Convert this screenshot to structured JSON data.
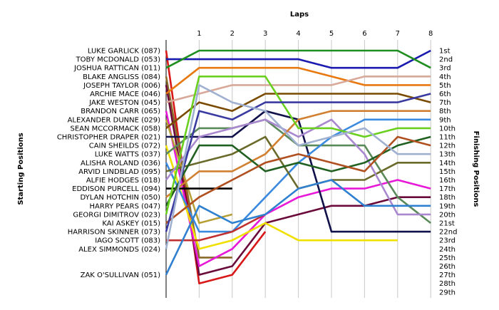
{
  "chart_data": {
    "type": "line",
    "title": "",
    "xlabel": "Laps",
    "ylabel_left": "Starting Positions",
    "ylabel_right": "Finishing Positions",
    "x_ticks": [
      1,
      2,
      3,
      4,
      5,
      6,
      7,
      8
    ],
    "grid": "vertical",
    "y_ticks_right": [
      "1st",
      "2nd",
      "3rd",
      "4th",
      "5th",
      "6th",
      "7th",
      "8th",
      "9th",
      "10th",
      "11th",
      "12th",
      "13th",
      "14th",
      "15th",
      "16th",
      "17th",
      "18th",
      "19th",
      "20th",
      "21st",
      "22nd",
      "23rd",
      "24th",
      "25th",
      "26th",
      "27th",
      "28th",
      "29th"
    ],
    "series": [
      {
        "name": "LUKE GARLICK (087)",
        "color": "#d81818",
        "positions": [
          1,
          28,
          27,
          22
        ]
      },
      {
        "name": "TOBY MCDONALD (053)",
        "color": "#1a1ab0",
        "positions": [
          2,
          2,
          2,
          2,
          2,
          3,
          3,
          3,
          1
        ]
      },
      {
        "name": "JOSHUA RATTICAN (011)",
        "color": "#1e8e1e",
        "positions": [
          3,
          1,
          1,
          1,
          1,
          1,
          1,
          1,
          3
        ]
      },
      {
        "name": "BLAKE ANGLISS (084)",
        "color": "#8a6a2a",
        "positions": [
          4,
          25,
          25
        ]
      },
      {
        "name": "JOSEPH TAYLOR (006)",
        "color": "#6a0a3a",
        "positions": [
          5,
          27,
          26,
          21,
          20,
          19,
          19,
          18,
          18
        ]
      },
      {
        "name": "ARCHIE MACE (046)",
        "color": "#e87810",
        "positions": [
          6,
          3,
          3,
          3,
          3,
          4,
          5,
          5,
          5
        ]
      },
      {
        "name": "JAKE WESTON (045)",
        "color": "#d8a898",
        "positions": [
          7,
          6,
          5,
          5,
          5,
          5,
          4,
          4,
          4
        ]
      },
      {
        "name": "BRANDON CARR (065)",
        "color": "#e818d8",
        "positions": [
          8,
          26,
          24,
          20,
          18,
          17,
          17,
          16,
          17
        ]
      },
      {
        "name": "ALEXANDER DUNNE (029)",
        "color": "#b8a038",
        "positions": [
          9,
          21,
          20
        ]
      },
      {
        "name": "SEAN MCCORMACK (058)",
        "color": "#7a4a00",
        "positions": [
          10,
          7,
          8,
          6,
          6,
          6,
          6,
          6,
          7
        ]
      },
      {
        "name": "CHRISTOPHER DRAPER (021)",
        "color": "#10104a",
        "positions": [
          11,
          11,
          11,
          8,
          9,
          22,
          22,
          22,
          22
        ]
      },
      {
        "name": "CAIN SHEILDS (072)",
        "color": "#f0e000",
        "positions": [
          12,
          24,
          23,
          21,
          23,
          23,
          23,
          23
        ]
      },
      {
        "name": "LUKE WATTS (037)",
        "color": "#5a8a5a",
        "positions": [
          13,
          10,
          10,
          9,
          12,
          12,
          12,
          18,
          21
        ]
      },
      {
        "name": "ALISHA ROLAND (036)",
        "color": "#3a8ae0",
        "positions": [
          14,
          22,
          22,
          18,
          14,
          11,
          9,
          9,
          9
        ]
      },
      {
        "name": "ARVID LINDBLAD (095)",
        "color": "#6a6a2a",
        "positions": [
          15,
          14,
          13,
          11,
          17,
          16,
          16,
          14,
          14
        ]
      },
      {
        "name": "ALFIE HODGES (018)",
        "color": "#aa88d0",
        "positions": [
          16,
          11,
          10,
          9,
          11,
          9,
          13,
          20,
          20
        ]
      },
      {
        "name": "EDDISON PURCELL (094)",
        "color": "#000000",
        "positions": [
          17,
          17,
          17
        ]
      },
      {
        "name": "DYLAN HOTCHIN (050)",
        "color": "#d08030",
        "positions": [
          18,
          15,
          15,
          13,
          9,
          8,
          8,
          8,
          8
        ]
      },
      {
        "name": "HARRY PEARS (047)",
        "color": "#206020",
        "positions": [
          19,
          12,
          12,
          15,
          14,
          15,
          14,
          12,
          11
        ]
      },
      {
        "name": "GEORGI DIMITROV (023)",
        "color": "#6ad020",
        "positions": [
          20,
          4,
          4,
          4,
          10,
          10,
          11,
          10,
          10
        ]
      },
      {
        "name": "KAI ASKEY (015)",
        "color": "#b05020",
        "positions": [
          21,
          18,
          16,
          14,
          13,
          14,
          15,
          11,
          12
        ]
      },
      {
        "name": "HARRISON SKINNER (073)",
        "color": "#3a3aa0",
        "positions": [
          22,
          8,
          9,
          7,
          7,
          7,
          7,
          7,
          6
        ]
      },
      {
        "name": "IAGO SCOTT (083)",
        "color": "#c03030",
        "positions": [
          23,
          23,
          22,
          20
        ]
      },
      {
        "name": "ALEX SIMMONDS (024)",
        "color": "#a0b0d0",
        "positions": [
          24,
          5,
          7,
          8,
          12,
          11,
          10,
          13,
          13
        ]
      },
      {
        "name": "ZAK O'SULLIVAN (051)",
        "color": "#3080d0",
        "positions": [
          27,
          19,
          21,
          20,
          17,
          16,
          19,
          19,
          19
        ]
      }
    ]
  }
}
